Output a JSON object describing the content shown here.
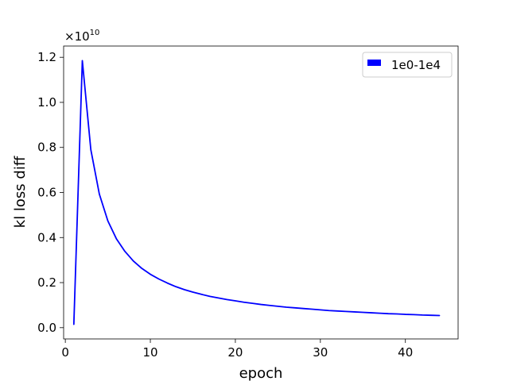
{
  "chart_data": {
    "type": "line",
    "xlabel": "epoch",
    "ylabel": "kl loss diff",
    "y_offset_base": "×10",
    "y_offset_exponent": "10",
    "xlim": [
      -0.2,
      46.2
    ],
    "ylim": [
      -0.05,
      1.25
    ],
    "x_ticks": [
      0,
      10,
      20,
      30,
      40
    ],
    "x_tick_labels": [
      "0",
      "10",
      "20",
      "30",
      "40"
    ],
    "y_ticks": [
      0.0,
      0.2,
      0.4,
      0.6,
      0.8,
      1.0,
      1.2
    ],
    "y_tick_labels": [
      "0.0",
      "0.2",
      "0.4",
      "0.6",
      "0.8",
      "1.0",
      "1.2"
    ],
    "grid": false,
    "legend_position": "top-right",
    "series": [
      {
        "name": "1e0-1e4",
        "color": "#0000ff",
        "x": [
          1,
          2,
          3,
          4,
          5,
          6,
          7,
          8,
          9,
          10,
          11,
          12,
          13,
          14,
          15,
          16,
          17,
          18,
          19,
          20,
          21,
          22,
          23,
          24,
          25,
          26,
          27,
          28,
          29,
          30,
          31,
          32,
          33,
          34,
          35,
          36,
          37,
          38,
          39,
          40,
          41,
          42,
          43,
          44
        ],
        "values": [
          0.015,
          1.185,
          0.79,
          0.593,
          0.474,
          0.395,
          0.339,
          0.296,
          0.263,
          0.237,
          0.216,
          0.198,
          0.182,
          0.169,
          0.158,
          0.148,
          0.139,
          0.132,
          0.125,
          0.119,
          0.113,
          0.108,
          0.103,
          0.099,
          0.095,
          0.091,
          0.088,
          0.085,
          0.082,
          0.079,
          0.076,
          0.074,
          0.072,
          0.07,
          0.068,
          0.066,
          0.064,
          0.062,
          0.061,
          0.059,
          0.058,
          0.056,
          0.055,
          0.054
        ]
      }
    ]
  }
}
